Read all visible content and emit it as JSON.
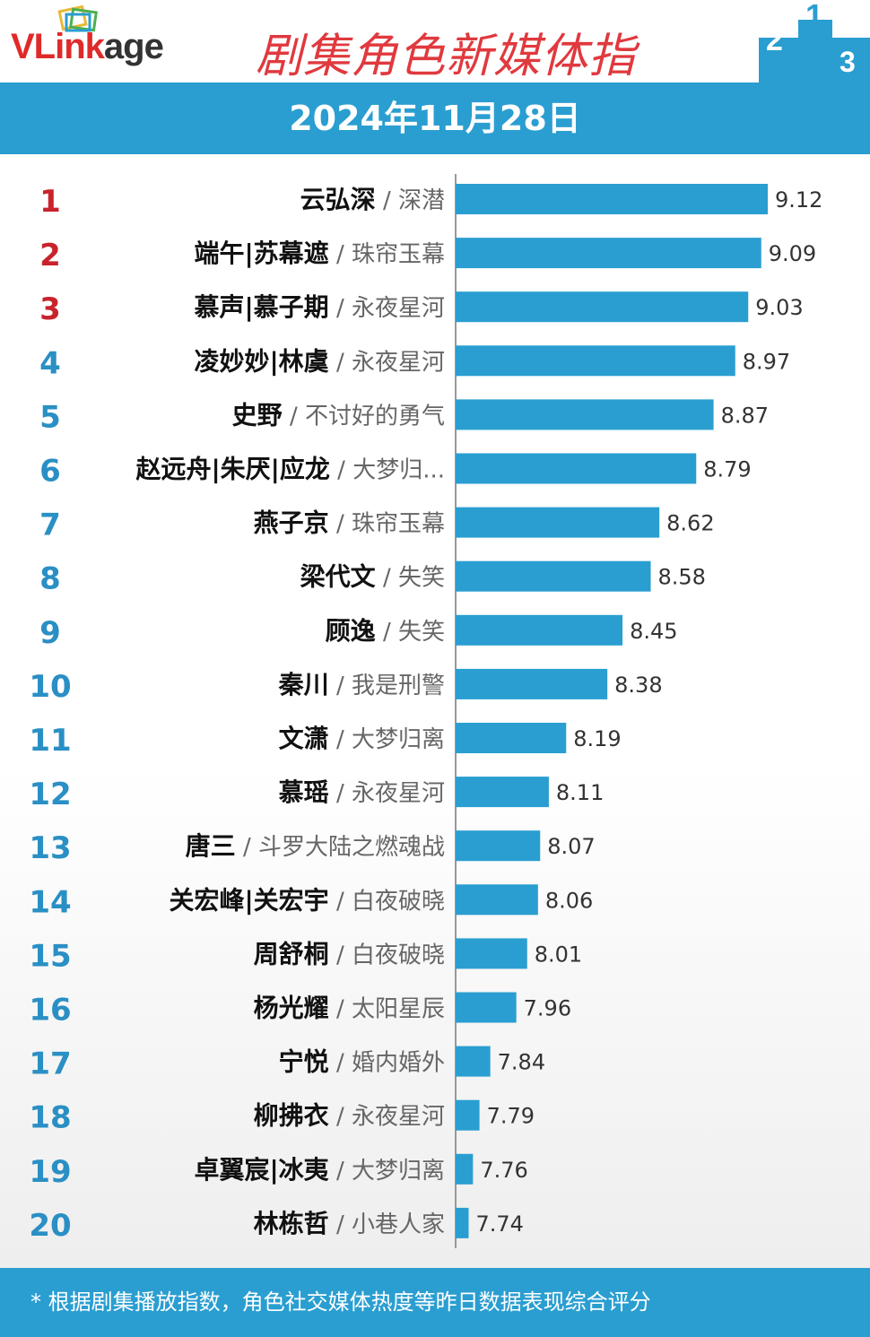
{
  "header": {
    "logo_text_v": "VLink",
    "logo_text_age": "age",
    "title": "剧集角色新媒体指",
    "podium_labels": [
      "2",
      "1",
      "3"
    ],
    "date": "2024年11月28日"
  },
  "colors": {
    "accent": "#2a9ed1",
    "bar": "#2a9ed1",
    "rank_top3": "#c8232d",
    "rank_rest": "#2a8fc4",
    "title_red": "#e0393e"
  },
  "chart_data": {
    "type": "bar",
    "orientation": "horizontal",
    "rows": [
      {
        "rank": "1",
        "name": "云弘深",
        "show": "深潜",
        "value": 9.12
      },
      {
        "rank": "2",
        "name": "端午|苏幕遮",
        "show": "珠帘玉幕",
        "value": 9.09
      },
      {
        "rank": "3",
        "name": "慕声|慕子期",
        "show": "永夜星河",
        "value": 9.03
      },
      {
        "rank": "4",
        "name": "凌妙妙|林虞",
        "show": "永夜星河",
        "value": 8.97
      },
      {
        "rank": "5",
        "name": "史野",
        "show": "不讨好的勇气",
        "value": 8.87
      },
      {
        "rank": "6",
        "name": "赵远舟|朱厌|应龙",
        "show": "大梦归...",
        "value": 8.79
      },
      {
        "rank": "7",
        "name": "燕子京",
        "show": "珠帘玉幕",
        "value": 8.62
      },
      {
        "rank": "8",
        "name": "梁代文",
        "show": "失笑",
        "value": 8.58
      },
      {
        "rank": "9",
        "name": "顾逸",
        "show": "失笑",
        "value": 8.45
      },
      {
        "rank": "10",
        "name": "秦川",
        "show": "我是刑警",
        "value": 8.38
      },
      {
        "rank": "11",
        "name": "文潇",
        "show": "大梦归离",
        "value": 8.19
      },
      {
        "rank": "12",
        "name": "慕瑶",
        "show": "永夜星河",
        "value": 8.11
      },
      {
        "rank": "13",
        "name": "唐三",
        "show": "斗罗大陆之燃魂战",
        "value": 8.07
      },
      {
        "rank": "14",
        "name": "关宏峰|关宏宇",
        "show": "白夜破晓",
        "value": 8.06
      },
      {
        "rank": "15",
        "name": "周舒桐",
        "show": "白夜破晓",
        "value": 8.01
      },
      {
        "rank": "16",
        "name": "杨光耀",
        "show": "太阳星辰",
        "value": 7.96
      },
      {
        "rank": "17",
        "name": "宁悦",
        "show": "婚内婚外",
        "value": 7.84
      },
      {
        "rank": "18",
        "name": "柳拂衣",
        "show": "永夜星河",
        "value": 7.79
      },
      {
        "rank": "19",
        "name": "卓翼宸|冰夷",
        "show": "大梦归离",
        "value": 7.76
      },
      {
        "rank": "20",
        "name": "林栋哲",
        "show": "小巷人家",
        "value": 7.74
      }
    ],
    "xlim": [
      7.68,
      9.12
    ]
  },
  "footer": {
    "note": "* 根据剧集播放指数，角色社交媒体热度等昨日数据表现综合评分"
  }
}
